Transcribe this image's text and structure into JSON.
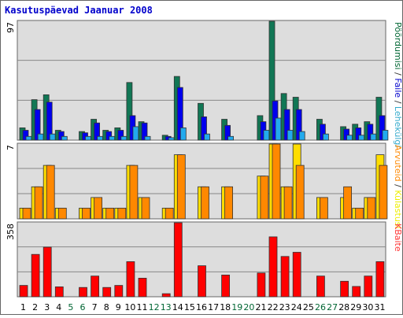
{
  "chart_data": {
    "type": "bar",
    "title": "Kasutuspäevad Jaanuar 2008",
    "categories": [
      "1",
      "2",
      "3",
      "4",
      "5",
      "6",
      "7",
      "8",
      "9",
      "10",
      "11",
      "12",
      "13",
      "14",
      "15",
      "16",
      "17",
      "18",
      "19",
      "20",
      "21",
      "22",
      "23",
      "24",
      "25",
      "26",
      "27",
      "28",
      "29",
      "30",
      "31"
    ],
    "weekend_days": [
      "5",
      "6",
      "12",
      "13",
      "19",
      "20",
      "26",
      "27"
    ],
    "panels": [
      {
        "name": "upper",
        "ymax_label": "97",
        "ylim": [
          0,
          97
        ],
        "right_labels": [
          {
            "text": "Pöördumisi",
            "color": "#006633"
          },
          {
            "text": " / ",
            "color": "#333333"
          },
          {
            "text": "Faile",
            "color": "#0000cc"
          },
          {
            "text": " / ",
            "color": "#333333"
          },
          {
            "text": "Lehekülgi",
            "color": "#33aacc"
          }
        ],
        "series": [
          {
            "name": "Pöördumisi",
            "color": "#117755",
            "values": [
              10,
              33,
              37,
              8,
              0,
              7,
              17,
              8,
              10,
              47,
              15,
              0,
              4,
              52,
              0,
              30,
              0,
              17,
              0,
              0,
              20,
              97,
              38,
              35,
              0,
              17,
              0,
              11,
              13,
              15,
              35
            ]
          },
          {
            "name": "Faile",
            "color": "#0000ee",
            "values": [
              8,
              25,
              31,
              7,
              0,
              6,
              14,
              7,
              8,
              20,
              14,
              0,
              3,
              43,
              0,
              19,
              0,
              12,
              0,
              0,
              15,
              32,
              25,
              25,
              0,
              13,
              0,
              9,
              10,
              13,
              20
            ]
          },
          {
            "name": "Lehekülgi",
            "color": "#22aaee",
            "values": [
              3,
              5,
              5,
              3,
              0,
              3,
              3,
              3,
              3,
              11,
              3,
              0,
              2,
              10,
              0,
              5,
              0,
              3,
              0,
              0,
              8,
              18,
              8,
              7,
              0,
              5,
              0,
              4,
              4,
              5,
              8
            ]
          }
        ]
      },
      {
        "name": "middle",
        "ymax_label": "7",
        "ylim": [
          0,
          7
        ],
        "right_labels": [
          {
            "text": "Arvuteid",
            "color": "#ff8800"
          },
          {
            "text": " / ",
            "color": "#333333"
          },
          {
            "text": "Külastusi",
            "color": "#eeee00"
          }
        ],
        "series": [
          {
            "name": "Arvuteid",
            "color": "#ffdd00",
            "values": [
              1,
              3,
              5,
              1,
              0,
              1,
              2,
              1,
              1,
              5,
              2,
              0,
              1,
              6,
              0,
              3,
              0,
              3,
              0,
              0,
              4,
              7,
              3,
              7,
              0,
              2,
              0,
              2,
              1,
              2,
              6
            ]
          },
          {
            "name": "Külastusi",
            "color": "#ff8800",
            "values": [
              1,
              3,
              5,
              1,
              0,
              1,
              2,
              1,
              1,
              5,
              2,
              0,
              1,
              6,
              0,
              3,
              0,
              3,
              0,
              0,
              4,
              7,
              3,
              5,
              0,
              2,
              0,
              3,
              1,
              2,
              5
            ]
          }
        ]
      },
      {
        "name": "lower",
        "ymax_label": "358",
        "ylim": [
          0,
          358
        ],
        "right_labels": [
          {
            "text": "KBaite",
            "color": "#ff3333"
          }
        ],
        "series": [
          {
            "name": "KBaite",
            "color": "#ff0000",
            "values": [
              55,
              205,
              240,
              48,
              0,
              45,
              100,
              45,
              55,
              170,
              90,
              0,
              15,
              358,
              0,
              150,
              0,
              105,
              0,
              0,
              115,
              290,
              195,
              215,
              0,
              100,
              0,
              75,
              50,
              100,
              170
            ]
          }
        ]
      }
    ],
    "colors": {
      "border": "#666666",
      "panel_bg": "#dddddd",
      "grid": "#888888",
      "weekday_label": "#000000",
      "weekend_label": "#006633"
    }
  }
}
